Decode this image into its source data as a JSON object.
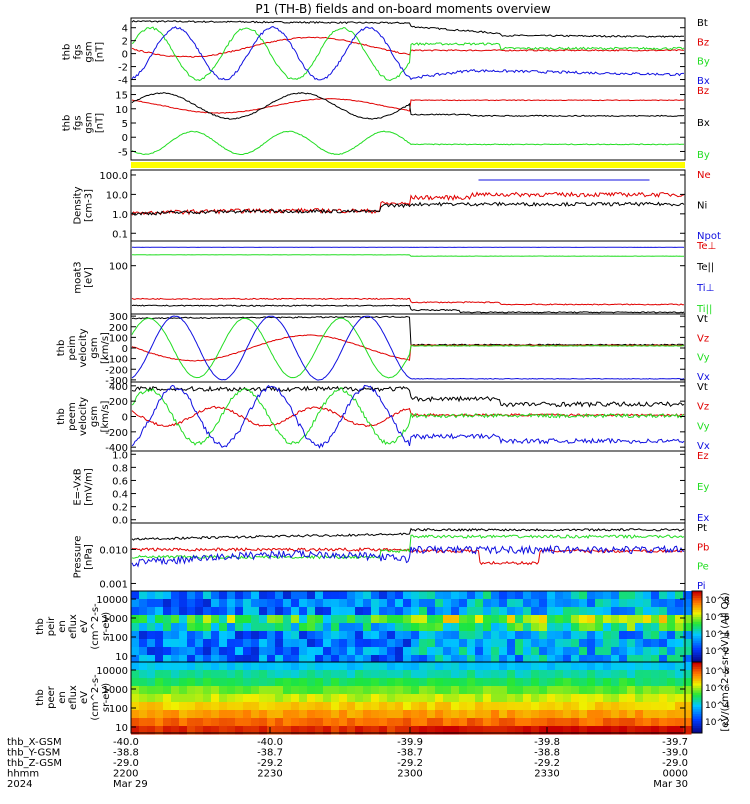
{
  "title": "P1 (TH-B) fields and on-board moments overview",
  "colors": {
    "black": "#000000",
    "red": "#e00000",
    "green": "#22dd22",
    "blue": "#1010e0",
    "yellow": "#ffff00"
  },
  "chart_data": [
    {
      "type": "line",
      "ylabel": "thb\nfgs\ngsm\n[nT]",
      "yticks": [
        "4",
        "2",
        "0",
        "-2",
        "-4"
      ],
      "ylim": [
        -5,
        5.5
      ],
      "legend": [
        {
          "name": "Bt",
          "color": "black"
        },
        {
          "name": "Bz",
          "color": "red"
        },
        {
          "name": "By",
          "color": "green"
        },
        {
          "name": "Bx",
          "color": "blue"
        }
      ]
    },
    {
      "type": "line",
      "ylabel": "thb\nfgs\ngsm\n[nT]",
      "yticks": [
        "15",
        "10",
        "5",
        "0",
        "-5"
      ],
      "ylim": [
        -8,
        18
      ],
      "legend": [
        {
          "name": "Bz",
          "color": "red"
        },
        {
          "name": "Bx",
          "color": "black"
        },
        {
          "name": "By",
          "color": "green"
        }
      ]
    },
    {
      "type": "line",
      "scale": "log",
      "ylabel": "Density\n[cm-3]",
      "yticks": [
        "100.0",
        "10.0",
        "1.0",
        "0.1"
      ],
      "ylim": [
        0.04,
        180
      ],
      "legend": [
        {
          "name": "Ne",
          "color": "red"
        },
        {
          "name": "Ni",
          "color": "black"
        },
        {
          "name": "Npot",
          "color": "blue"
        }
      ]
    },
    {
      "type": "line",
      "scale": "log",
      "ylabel": "moat3\n[eV]",
      "yticks": [
        "100"
      ],
      "ylim": [
        3,
        600
      ],
      "legend": [
        {
          "name": "Te⊥",
          "color": "red"
        },
        {
          "name": "Te||",
          "color": "black"
        },
        {
          "name": "Ti⊥",
          "color": "blue"
        },
        {
          "name": "Ti||",
          "color": "green"
        }
      ]
    },
    {
      "type": "line",
      "ylabel": "thb\npeim\nvelocity\ngsm\n[km/s]",
      "yticks": [
        "300",
        "200",
        "100",
        "0",
        "-100",
        "-200",
        "-300"
      ],
      "ylim": [
        -320,
        320
      ],
      "legend": [
        {
          "name": "Vt",
          "color": "black"
        },
        {
          "name": "Vz",
          "color": "red"
        },
        {
          "name": "Vy",
          "color": "green"
        },
        {
          "name": "Vx",
          "color": "blue"
        }
      ]
    },
    {
      "type": "line",
      "ylabel": "thb\npeem\nvelocity\ngsm\n[km/s]",
      "yticks": [
        "400",
        "200",
        "0",
        "-200",
        "-400"
      ],
      "ylim": [
        -450,
        450
      ],
      "legend": [
        {
          "name": "Vt",
          "color": "black"
        },
        {
          "name": "Vz",
          "color": "red"
        },
        {
          "name": "Vy",
          "color": "green"
        },
        {
          "name": "Vx",
          "color": "blue"
        }
      ]
    },
    {
      "type": "line",
      "ylabel": "E=-VxB\n[mV/m]",
      "yticks": [
        "1.0",
        "0.8",
        "0.6",
        "0.4",
        "0.2",
        "0.0"
      ],
      "ylim": [
        -0.05,
        1.05
      ],
      "legend": [
        {
          "name": "Ez",
          "color": "red"
        },
        {
          "name": "Ey",
          "color": "green"
        },
        {
          "name": "Ex",
          "color": "blue"
        }
      ]
    },
    {
      "type": "line",
      "scale": "log",
      "ylabel": "Pressure\n[nPa]",
      "yticks": [
        "0.010",
        "0.001"
      ],
      "ylim": [
        0.0006,
        0.06
      ],
      "legend": [
        {
          "name": "Pt",
          "color": "black"
        },
        {
          "name": "Pb",
          "color": "red"
        },
        {
          "name": "Pe",
          "color": "green"
        },
        {
          "name": "Pi",
          "color": "blue"
        }
      ]
    },
    {
      "type": "heatmap",
      "ylabel": "thb\npeir\nen\neflux\neV\n(cm^2-s-\nsr-eV)",
      "yticks": [
        "10000",
        "1000",
        "100",
        "10"
      ]
    },
    {
      "type": "heatmap",
      "ylabel": "thb\npeer\nen\neflux\neV\n(cm^2-s-\nsr-eV)",
      "yticks": [
        "10000",
        "1000",
        "100",
        "10"
      ]
    }
  ],
  "colorbars": [
    {
      "ticks": [
        "10^8",
        "10^6",
        "10^4",
        "10^2"
      ],
      "label": "[eV/(cm^2-s-sr-eV)] (All Qs)"
    },
    {
      "ticks": [
        "10^8",
        "10^6",
        "10^4",
        "10^2"
      ]
    }
  ],
  "xaxis": {
    "rows": [
      {
        "label": "thb_X-GSM",
        "values": [
          "-40.0",
          "-40.0",
          "-39.9",
          "-39.8",
          "-39.7"
        ]
      },
      {
        "label": "thb_Y-GSM",
        "values": [
          "-38.8",
          "-38.7",
          "-38.7",
          "-38.8",
          "-39.0"
        ]
      },
      {
        "label": "thb_Z-GSM",
        "values": [
          "-29.0",
          "-29.2",
          "-29.2",
          "-29.2",
          "-29.0"
        ]
      },
      {
        "label": "hhmm",
        "values": [
          "2200",
          "2230",
          "2300",
          "2330",
          "0000"
        ]
      },
      {
        "label": "2024",
        "values": [
          "Mar 29",
          "",
          "",
          "",
          "Mar 30"
        ]
      }
    ]
  }
}
